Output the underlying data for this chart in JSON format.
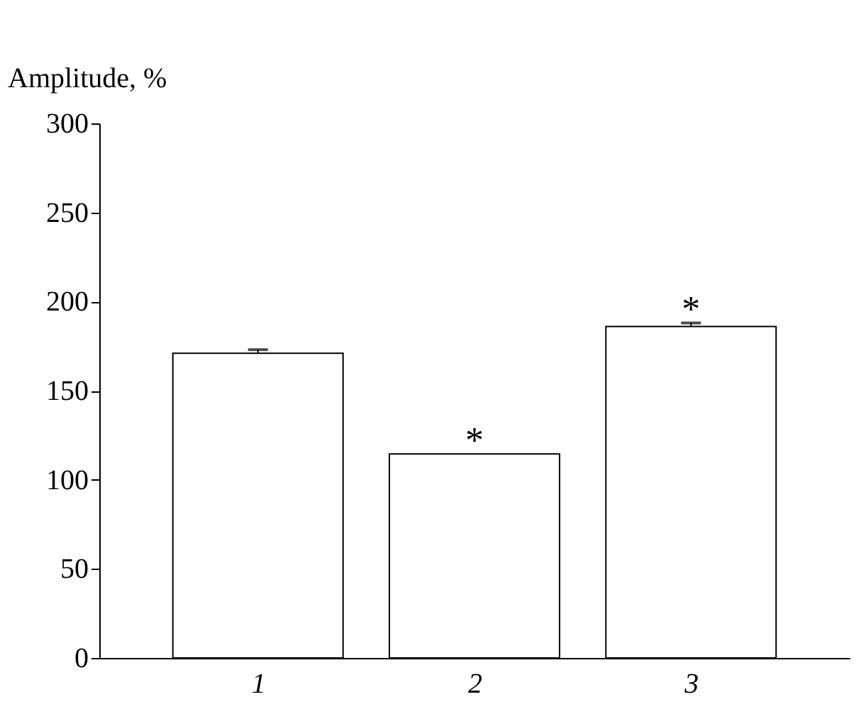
{
  "chart_data": {
    "type": "bar",
    "ylabel": "Amplitude, %",
    "categories": [
      "1",
      "2",
      "3"
    ],
    "values": [
      171,
      114.5,
      186
    ],
    "errors": [
      [
        171,
        173
      ],
      null,
      [
        186,
        188
      ]
    ],
    "color": "#ffffff",
    "ylim": [
      0,
      300
    ],
    "yticks": [
      0,
      50,
      100,
      150,
      200,
      250,
      300
    ],
    "grid": false,
    "annotations": [
      {
        "text": "*",
        "x": "2",
        "y": 114.5
      },
      {
        "text": "*",
        "x": "3",
        "y": 188
      }
    ]
  }
}
